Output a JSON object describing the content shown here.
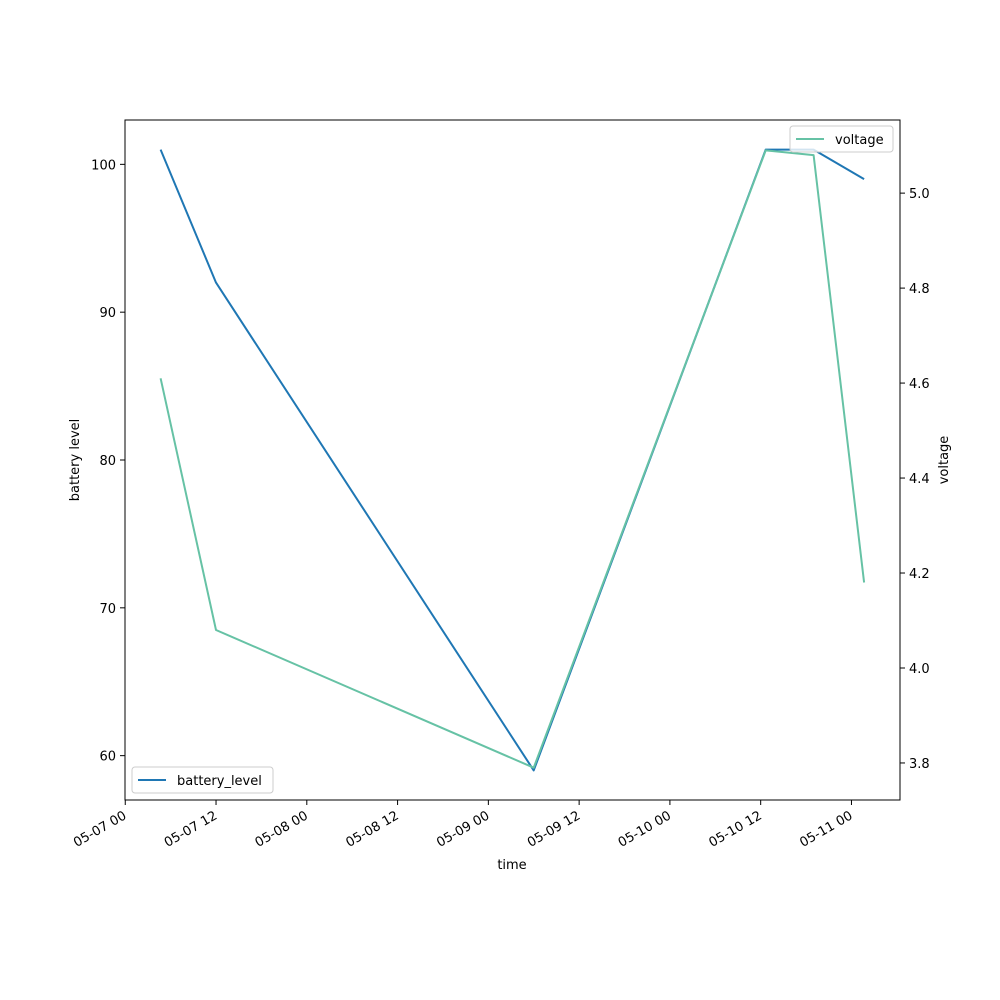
{
  "chart_data": {
    "type": "line",
    "xlabel": "time",
    "ylabel_left": "battery level",
    "ylabel_right": "voltage",
    "x_ticks": [
      "05-07 00",
      "05-07 12",
      "05-08 00",
      "05-08 12",
      "05-09 00",
      "05-09 12",
      "05-10 00",
      "05-10 12",
      "05-11 00"
    ],
    "x_tick_times": [
      "2024-05-07T00:00",
      "2024-05-07T12:00",
      "2024-05-08T00:00",
      "2024-05-08T12:00",
      "2024-05-09T00:00",
      "2024-05-09T12:00",
      "2024-05-10T00:00",
      "2024-05-10T12:00",
      "2024-05-11T00:00"
    ],
    "xlim": [
      "2024-05-06T23:58",
      "2024-05-11T06:25"
    ],
    "ylim_left": [
      57,
      103
    ],
    "ylim_right": [
      3.722,
      5.154
    ],
    "y_ticks_left": [
      60,
      70,
      80,
      90,
      100
    ],
    "y_ticks_right": [
      "3.8",
      "4.0",
      "4.2",
      "4.4",
      "4.6",
      "4.8",
      "5.0"
    ],
    "series": [
      {
        "name": "battery_level",
        "axis": "left",
        "color": "#1f77b4",
        "x": [
          "2024-05-07T04:40",
          "2024-05-07T12:00",
          "2024-05-09T06:00",
          "2024-05-10T12:40",
          "2024-05-10T19:00",
          "2024-05-11T01:40"
        ],
        "values": [
          101,
          92,
          59,
          101,
          101,
          99
        ]
      },
      {
        "name": "voltage",
        "axis": "right",
        "color": "#66c2a5",
        "x": [
          "2024-05-07T04:40",
          "2024-05-07T12:00",
          "2024-05-09T06:00",
          "2024-05-10T12:40",
          "2024-05-10T19:00",
          "2024-05-11T01:40"
        ],
        "values": [
          4.61,
          4.08,
          3.79,
          5.09,
          5.08,
          4.18
        ]
      }
    ],
    "legend_left_position": "lower-left",
    "legend_right_position": "upper-right",
    "grid": false
  }
}
